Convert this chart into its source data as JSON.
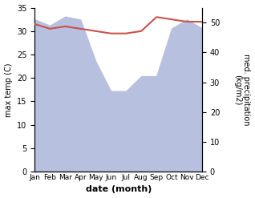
{
  "months": [
    "Jan",
    "Feb",
    "Mar",
    "Apr",
    "May",
    "Jun",
    "Jul",
    "Aug",
    "Sep",
    "Oct",
    "Nov",
    "Dec"
  ],
  "month_indices": [
    0,
    1,
    2,
    3,
    4,
    5,
    6,
    7,
    8,
    9,
    10,
    11
  ],
  "temperature": [
    31.5,
    30.5,
    31.0,
    30.5,
    30.0,
    29.5,
    29.5,
    30.0,
    33.0,
    32.5,
    32.0,
    32.0
  ],
  "precipitation_mm": [
    51,
    49,
    52,
    51,
    37,
    27,
    27,
    32,
    32,
    48,
    51,
    48
  ],
  "precip_color": "#b8c0e0",
  "temp_color": "#c8524a",
  "temp_label": "max temp (C)",
  "precip_ylabel": "med. precipitation\n(kg/m2)",
  "xlabel": "date (month)",
  "ylim_left": [
    0,
    35
  ],
  "ylim_right": [
    0,
    55
  ],
  "yticks_left": [
    0,
    5,
    10,
    15,
    20,
    25,
    30,
    35
  ],
  "yticks_right": [
    0,
    10,
    20,
    30,
    40,
    50
  ],
  "background_color": "#ffffff",
  "fig_facecolor": "#ffffff",
  "temp_linewidth": 1.5,
  "xlabel_fontsize": 8,
  "ylabel_fontsize": 7,
  "tick_fontsize": 7,
  "xtick_fontsize": 6.5
}
